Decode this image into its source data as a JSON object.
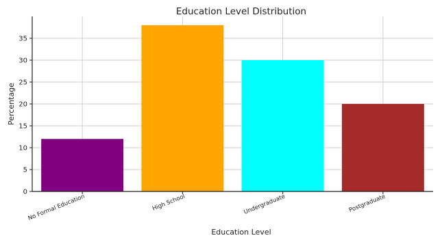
{
  "chart_data": {
    "type": "bar",
    "title": "Education Level Distribution",
    "xlabel": "Education Level",
    "ylabel": "Percentage",
    "categories": [
      "No Formal Education",
      "High School",
      "Undergraduate",
      "Postgraduate"
    ],
    "values": [
      12,
      38,
      30,
      20
    ],
    "colors": [
      "#800080",
      "#FFA500",
      "#00FFFF",
      "#A52A2A"
    ],
    "ylim": [
      0,
      40
    ],
    "yticks": [
      0,
      5,
      10,
      15,
      20,
      25,
      30,
      35
    ],
    "grid": true,
    "legend": "none"
  }
}
